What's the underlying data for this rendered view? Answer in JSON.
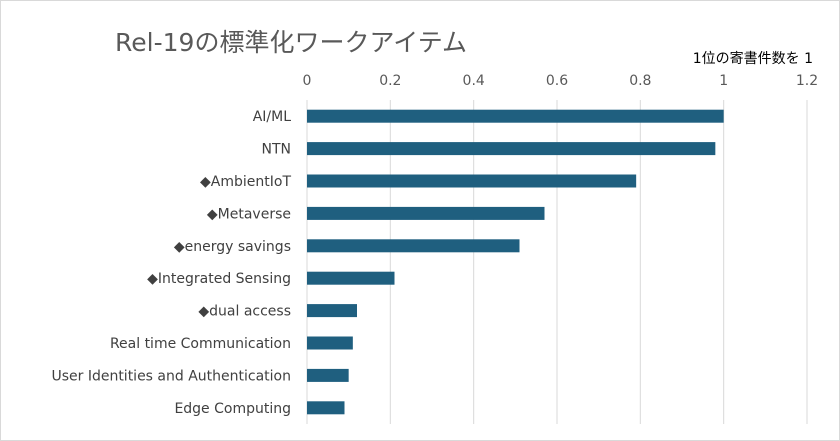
{
  "chart_data": {
    "type": "bar",
    "orientation": "horizontal",
    "title": "Rel-19の標準化ワークアイテム",
    "axis_note": "1位の寄書件数を 1",
    "categories": [
      "AI/ML",
      "NTN",
      "◆AmbientIoT",
      "◆Metaverse",
      "◆energy savings",
      "◆Integrated Sensing",
      "◆dual access",
      "Real time Communication",
      "User Identities and Authentication",
      "Edge Computing"
    ],
    "values": [
      1.0,
      0.98,
      0.79,
      0.57,
      0.51,
      0.21,
      0.12,
      0.11,
      0.1,
      0.09
    ],
    "xlim": [
      0,
      1.2
    ],
    "xticks": [
      "0",
      "0.2",
      "0.4",
      "0.6",
      "0.8",
      "1",
      "1.2"
    ],
    "tick_values": [
      0,
      0.2,
      0.4,
      0.6,
      0.8,
      1.0,
      1.2
    ],
    "grid": true,
    "bar_color": "#1f5f7f",
    "gridline_color": "#d9d9d9"
  }
}
